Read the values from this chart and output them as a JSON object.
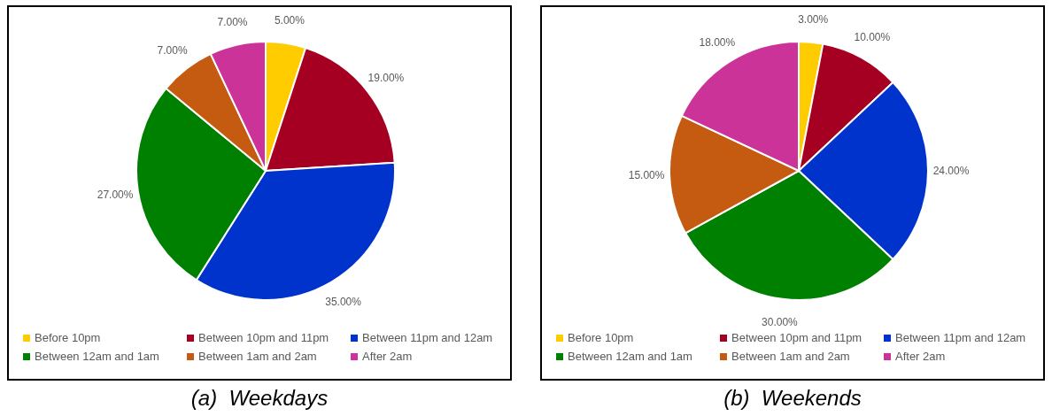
{
  "chart_data": [
    {
      "type": "pie",
      "title": "(a)  Weekdays",
      "categories": [
        "Before 10pm",
        "Between 10pm and 11pm",
        "Between 11pm and 12am",
        "Between 12am and 1am",
        "Between 1am and 2am",
        "After 2am"
      ],
      "values": [
        5,
        19,
        35,
        27,
        7,
        7
      ],
      "value_labels": [
        "5.00%",
        "19.00%",
        "35.00%",
        "27.00%",
        "7.00%",
        "7.00%"
      ],
      "colors": [
        "#ffcc00",
        "#a50021",
        "#0033cc",
        "#008000",
        "#c55a11",
        "#cc3399"
      ],
      "legend": "bottom"
    },
    {
      "type": "pie",
      "title": "(b)  Weekends",
      "categories": [
        "Before 10pm",
        "Between 10pm and 11pm",
        "Between 11pm and 12am",
        "Between 12am and 1am",
        "Between 1am and 2am",
        "After 2am"
      ],
      "values": [
        3,
        10,
        24,
        30,
        15,
        18
      ],
      "value_labels": [
        "3.00%",
        "10.00%",
        "24.00%",
        "30.00%",
        "15.00%",
        "18.00%"
      ],
      "colors": [
        "#ffcc00",
        "#a50021",
        "#0033cc",
        "#008000",
        "#c55a11",
        "#cc3399"
      ],
      "legend": "bottom"
    }
  ]
}
